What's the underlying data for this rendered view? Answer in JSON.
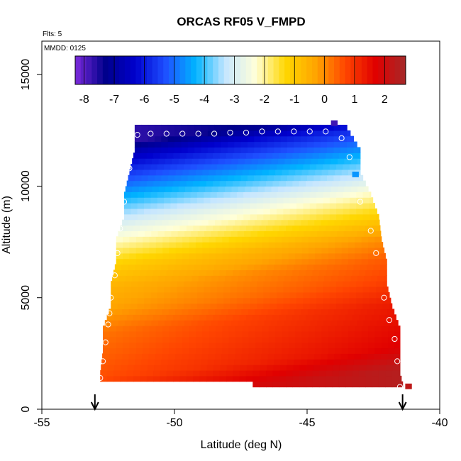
{
  "chart_data": {
    "type": "heatmap",
    "title": "ORCAS RF05 V_FMPD",
    "annotations": {
      "flights": "Flts: 5",
      "date": "MMDD: 0125"
    },
    "xlabel": "Latitude (deg N)",
    "ylabel": "Altitude (m)",
    "xlim": [
      -55,
      -40
    ],
    "ylim": [
      0,
      16500
    ],
    "x_ticks": [
      -55,
      -50,
      -45,
      -40
    ],
    "y_ticks": [
      0,
      5000,
      10000,
      15000
    ],
    "x_tick_labels": [
      "-55",
      "-50",
      "-45",
      "-40"
    ],
    "y_tick_labels": [
      "0",
      "5000",
      "10000",
      "15000"
    ],
    "colorbar": {
      "min": -8.3,
      "max": 2.7,
      "ticks": [
        -8,
        -7,
        -6,
        -5,
        -4,
        -3,
        -2,
        -1,
        0,
        1,
        2
      ],
      "tick_labels": [
        "-8",
        "-7",
        "-6",
        "-5",
        "-4",
        "-3",
        "-2",
        "-1",
        "0",
        "1",
        "2"
      ],
      "placement": "top-inside"
    },
    "colors": {
      "scale": [
        "#7e2bdc",
        "#00008b",
        "#0000cd",
        "#1e4fff",
        "#00b4ff",
        "#c6e6ff",
        "#ffffd8",
        "#ffd700",
        "#ffa500",
        "#ff4500",
        "#e00000",
        "#a52a2a"
      ],
      "marker": "#ffffff",
      "arrow": "#000000"
    },
    "field": {
      "lat_step": 0.25,
      "alt_step": 250,
      "profile": [
        {
          "alt": 1000,
          "v": 1.9
        },
        {
          "alt": 2000,
          "v": 1.2
        },
        {
          "alt": 3000,
          "v": 1.0
        },
        {
          "alt": 4000,
          "v": 0.8
        },
        {
          "alt": 5000,
          "v": 0.3
        },
        {
          "alt": 6000,
          "v": 0.0
        },
        {
          "alt": 7000,
          "v": -0.6
        },
        {
          "alt": 8000,
          "v": -1.6
        },
        {
          "alt": 9000,
          "v": -2.6
        },
        {
          "alt": 10000,
          "v": -3.8
        },
        {
          "alt": 11000,
          "v": -5.0
        },
        {
          "alt": 12000,
          "v": -6.2
        },
        {
          "alt": 12500,
          "v": -7.2
        }
      ],
      "lat_gradient": 0.1,
      "alt_slope_per_deg": 120,
      "envelope": [
        {
          "alt": 1000,
          "lat_min": -52.8,
          "lat_max": -41.4
        },
        {
          "alt": 1500,
          "lat_min": -52.8,
          "lat_max": -41.5
        },
        {
          "alt": 2500,
          "lat_min": -52.7,
          "lat_max": -41.5
        },
        {
          "alt": 3500,
          "lat_min": -52.7,
          "lat_max": -41.5
        },
        {
          "alt": 4500,
          "lat_min": -52.4,
          "lat_max": -41.8
        },
        {
          "alt": 5500,
          "lat_min": -52.4,
          "lat_max": -42.0
        },
        {
          "alt": 6500,
          "lat_min": -52.2,
          "lat_max": -42.0
        },
        {
          "alt": 7500,
          "lat_min": -52.2,
          "lat_max": -42.2
        },
        {
          "alt": 8500,
          "lat_min": -51.9,
          "lat_max": -42.3
        },
        {
          "alt": 9500,
          "lat_min": -51.9,
          "lat_max": -42.6
        },
        {
          "alt": 10500,
          "lat_min": -51.7,
          "lat_max": -43.0
        },
        {
          "alt": 11500,
          "lat_min": -51.5,
          "lat_max": -43.0
        },
        {
          "alt": 12500,
          "lat_min": -51.5,
          "lat_max": -43.5
        }
      ],
      "lower_cutoff": {
        "lat": -47.1,
        "alt_below_west": 1250,
        "alt_below_east": 1000
      }
    },
    "markers": [
      {
        "lat": -52.8,
        "alt": 1400
      },
      {
        "lat": -52.7,
        "alt": 2150
      },
      {
        "lat": -52.6,
        "alt": 3000
      },
      {
        "lat": -52.5,
        "alt": 3800
      },
      {
        "lat": -52.45,
        "alt": 4300
      },
      {
        "lat": -52.4,
        "alt": 5000
      },
      {
        "lat": -52.25,
        "alt": 6000
      },
      {
        "lat": -52.15,
        "alt": 7000
      },
      {
        "lat": -52.05,
        "alt": 8100
      },
      {
        "lat": -51.9,
        "alt": 9300
      },
      {
        "lat": -51.7,
        "alt": 10800
      },
      {
        "lat": -51.4,
        "alt": 12300
      },
      {
        "lat": -50.9,
        "alt": 12350
      },
      {
        "lat": -50.3,
        "alt": 12350
      },
      {
        "lat": -49.7,
        "alt": 12350
      },
      {
        "lat": -49.1,
        "alt": 12350
      },
      {
        "lat": -48.5,
        "alt": 12350
      },
      {
        "lat": -47.9,
        "alt": 12400
      },
      {
        "lat": -47.3,
        "alt": 12400
      },
      {
        "lat": -46.7,
        "alt": 12450
      },
      {
        "lat": -46.1,
        "alt": 12450
      },
      {
        "lat": -45.5,
        "alt": 12450
      },
      {
        "lat": -44.9,
        "alt": 12450
      },
      {
        "lat": -44.3,
        "alt": 12450
      },
      {
        "lat": -43.7,
        "alt": 12150
      },
      {
        "lat": -43.4,
        "alt": 11300
      },
      {
        "lat": -43.0,
        "alt": 9300
      },
      {
        "lat": -42.6,
        "alt": 8000
      },
      {
        "lat": -42.4,
        "alt": 7000
      },
      {
        "lat": -42.1,
        "alt": 5000
      },
      {
        "lat": -41.9,
        "alt": 4000
      },
      {
        "lat": -41.7,
        "alt": 3150
      },
      {
        "lat": -41.6,
        "alt": 2150
      },
      {
        "lat": -41.5,
        "alt": 1000
      }
    ],
    "arrows": [
      {
        "lat": -53.0
      },
      {
        "lat": -41.4
      }
    ],
    "extra_cells": [
      {
        "lat": -44.1,
        "alt": 12700,
        "v": -7.8
      },
      {
        "lat": -43.3,
        "alt": 10400,
        "v": -4.6
      },
      {
        "lat": -41.3,
        "alt": 900,
        "v": 2.3
      }
    ]
  }
}
